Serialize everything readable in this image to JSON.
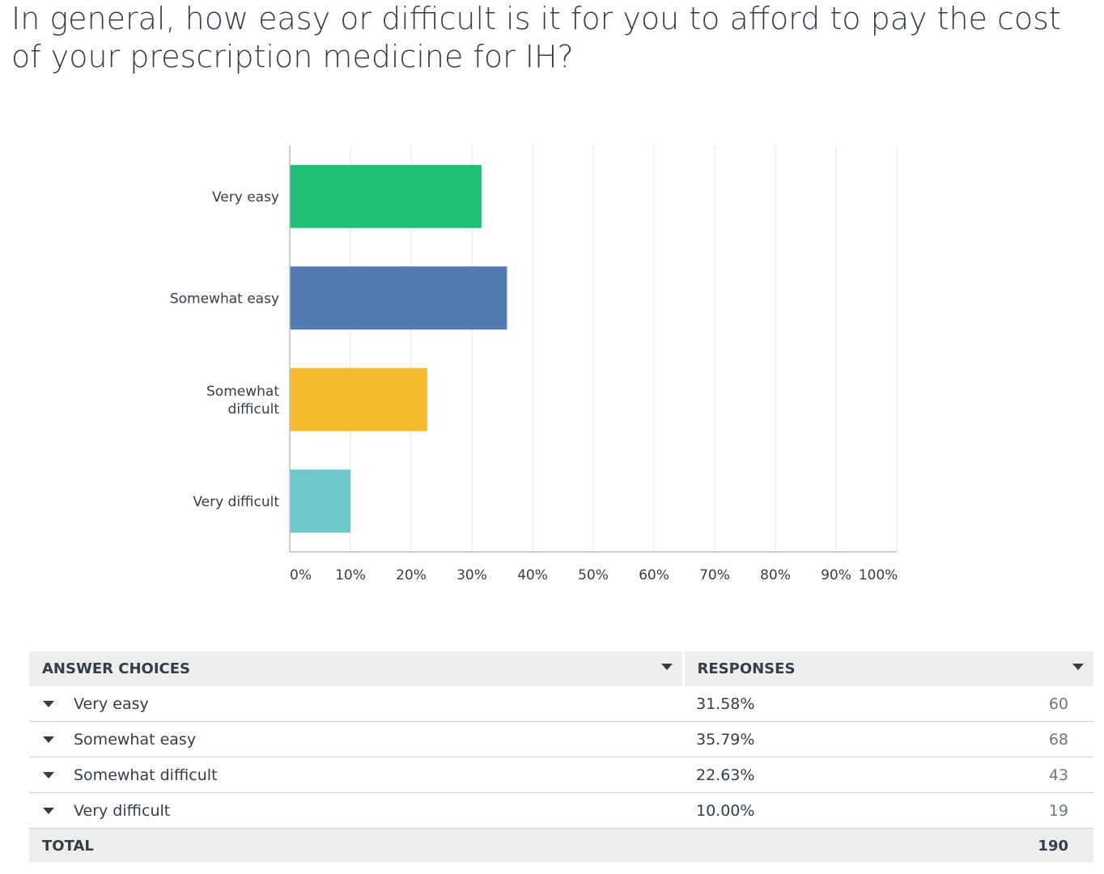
{
  "question": {
    "title": "In general, how easy or difficult is it for you to afford to pay the cost of your prescription medicine for IH?"
  },
  "chart_data": {
    "type": "bar",
    "orientation": "horizontal",
    "categories": [
      {
        "lines": [
          "Very easy"
        ],
        "color": "#1fbf75"
      },
      {
        "lines": [
          "Somewhat easy"
        ],
        "color": "#527bb4"
      },
      {
        "lines": [
          "Somewhat",
          "difficult"
        ],
        "color": "#f6bb2d"
      },
      {
        "lines": [
          "Very difficult"
        ],
        "color": "#6ec8cb"
      }
    ],
    "values": [
      31.58,
      35.79,
      22.63,
      10.0
    ],
    "xlim": [
      0,
      100
    ],
    "ticks": [
      "0%",
      "10%",
      "20%",
      "30%",
      "40%",
      "50%",
      "60%",
      "70%",
      "80%",
      "90%",
      "100%"
    ],
    "grid": true
  },
  "table": {
    "headers": {
      "choices": "ANSWER CHOICES",
      "responses": "RESPONSES"
    },
    "rows": [
      {
        "choice": "Very easy",
        "percent": "31.58%",
        "count": "60"
      },
      {
        "choice": "Somewhat easy",
        "percent": "35.79%",
        "count": "68"
      },
      {
        "choice": "Somewhat difficult",
        "percent": "22.63%",
        "count": "43"
      },
      {
        "choice": "Very difficult",
        "percent": "10.00%",
        "count": "19"
      }
    ],
    "total": {
      "label": "TOTAL",
      "count": "190"
    }
  },
  "icons": {
    "sort": "caret-down-icon",
    "expand": "caret-down-icon"
  }
}
